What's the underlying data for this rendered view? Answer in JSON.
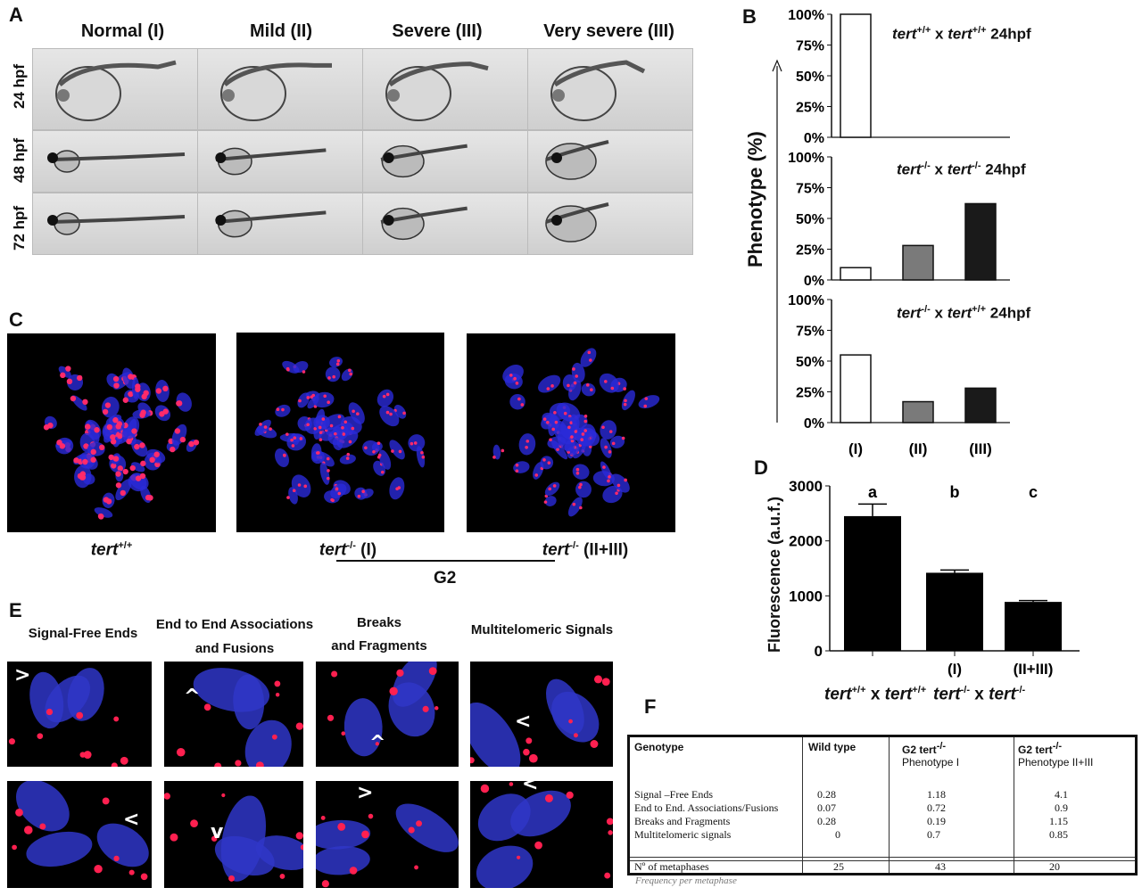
{
  "panelA": {
    "label": "A",
    "columns": [
      "Normal (I)",
      "Mild (II)",
      "Severe (III)",
      "Very severe (III)"
    ],
    "rows": [
      "24 hpf",
      "48 hpf",
      "72 hpf"
    ]
  },
  "panelB": {
    "label": "B",
    "ylabel": "Phenotype (%)",
    "ticks": [
      "100%",
      "75%",
      "50%",
      "25%",
      "0%"
    ],
    "categories": [
      "(I)",
      "(II)",
      "(III)"
    ],
    "subplots": [
      {
        "tert1": "tert",
        "sup1": "+/+",
        "x": "x",
        "tert2": "tert",
        "sup2": "+/+",
        "stage": "24hpf"
      },
      {
        "tert1": "tert",
        "sup1": "-/-",
        "x": "x",
        "tert2": "tert",
        "sup2": "-/-",
        "stage": "24hpf"
      },
      {
        "tert1": "tert",
        "sup1": "-/-",
        "x": "x",
        "tert2": "tert",
        "sup2": "+/+",
        "stage": "24hpf"
      }
    ]
  },
  "chart_data": [
    {
      "type": "bar",
      "title": "tert+/+ x tert+/+ 24hpf",
      "ylabel": "Phenotype (%)",
      "categories": [
        "(I)",
        "(II)",
        "(III)"
      ],
      "values": [
        100,
        0,
        0
      ],
      "ylim": [
        0,
        100
      ],
      "colors": [
        "#ffffff",
        "#7a7a7a",
        "#1a1a1a"
      ]
    },
    {
      "type": "bar",
      "title": "tert-/- x tert-/- 24hpf",
      "ylabel": "Phenotype (%)",
      "categories": [
        "(I)",
        "(II)",
        "(III)"
      ],
      "values": [
        10,
        28,
        62
      ],
      "ylim": [
        0,
        100
      ],
      "colors": [
        "#ffffff",
        "#7a7a7a",
        "#1a1a1a"
      ]
    },
    {
      "type": "bar",
      "title": "tert-/- x tert+/+ 24hpf",
      "ylabel": "Phenotype (%)",
      "categories": [
        "(I)",
        "(II)",
        "(III)"
      ],
      "values": [
        55,
        17,
        28
      ],
      "ylim": [
        0,
        100
      ],
      "colors": [
        "#ffffff",
        "#7a7a7a",
        "#1a1a1a"
      ]
    },
    {
      "type": "bar",
      "ylabel": "Fluorescence (a.u.f.)",
      "categories": [
        "tert+/+ x tert+/+",
        "(I)",
        "(II+III)"
      ],
      "values": [
        2450,
        1420,
        890
      ],
      "errors": [
        220,
        50,
        25
      ],
      "significance": [
        "a",
        "b",
        "c"
      ],
      "ylim": [
        0,
        3000
      ],
      "yticks": [
        0,
        1000,
        2000,
        3000
      ]
    }
  ],
  "panelC": {
    "label": "C",
    "captions": [
      {
        "t": "tert",
        "s": "+/+",
        "rest": ""
      },
      {
        "t": "tert",
        "s": "-/-",
        "rest": " (I)"
      },
      {
        "t": "tert",
        "s": "-/-",
        "rest": " (II+III)"
      }
    ],
    "group": "G2"
  },
  "panelD": {
    "label": "D",
    "ylabel": "Fluorescence (a.u.f.)",
    "yticks": [
      "3000",
      "2000",
      "1000",
      "0"
    ],
    "letters": [
      "a",
      "b",
      "c"
    ],
    "xcats": [
      "(I)",
      "(II+III)"
    ],
    "group1": {
      "t1": "tert",
      "s1": "+/+",
      "x": "x",
      "t2": "tert",
      "s2": "+/+"
    },
    "group2": {
      "t1": "tert",
      "s1": "-/-",
      "x": "x",
      "t2": "tert",
      "s2": "-/-"
    }
  },
  "panelE": {
    "label": "E",
    "headers": [
      "Signal-Free Ends",
      "End to End Associations",
      "and  Fusions",
      "Breaks",
      "and Fragments",
      "Multitelomeric Signals"
    ],
    "arrows": [
      ">",
      "^",
      "^",
      "<",
      "<",
      "v",
      ">",
      "<"
    ]
  },
  "panelF": {
    "label": "F",
    "headers": {
      "genotype": "Genotype",
      "wt": "Wild type",
      "g2a": "G2 tert",
      "g2a_sup": "-/-",
      "g2a_sub": "Phenotype I",
      "g2b": "G2 tert",
      "g2b_sup": "-/-",
      "g2b_sub": "Phenotype  II+III"
    },
    "rows": [
      {
        "name": "Signal –Free Ends",
        "wt": "0.28",
        "g2i": "1.18",
        "g2ii": "4.1"
      },
      {
        "name": "End to End. Associations/Fusions",
        "wt": "0.07",
        "g2i": "0.72",
        "g2ii": "0.9"
      },
      {
        "name": "Breaks and Fragments",
        "wt": "0.28",
        "g2i": "0.19",
        "g2ii": "1.15"
      },
      {
        "name": "Multitelomeric signals",
        "wt": "0",
        "g2i": "0.7",
        "g2ii": "0.85"
      }
    ],
    "metaphases": {
      "name": "Nº of metaphases",
      "wt": "25",
      "g2i": "43",
      "g2ii": "20"
    },
    "footnote": "Frequency per metaphase"
  }
}
